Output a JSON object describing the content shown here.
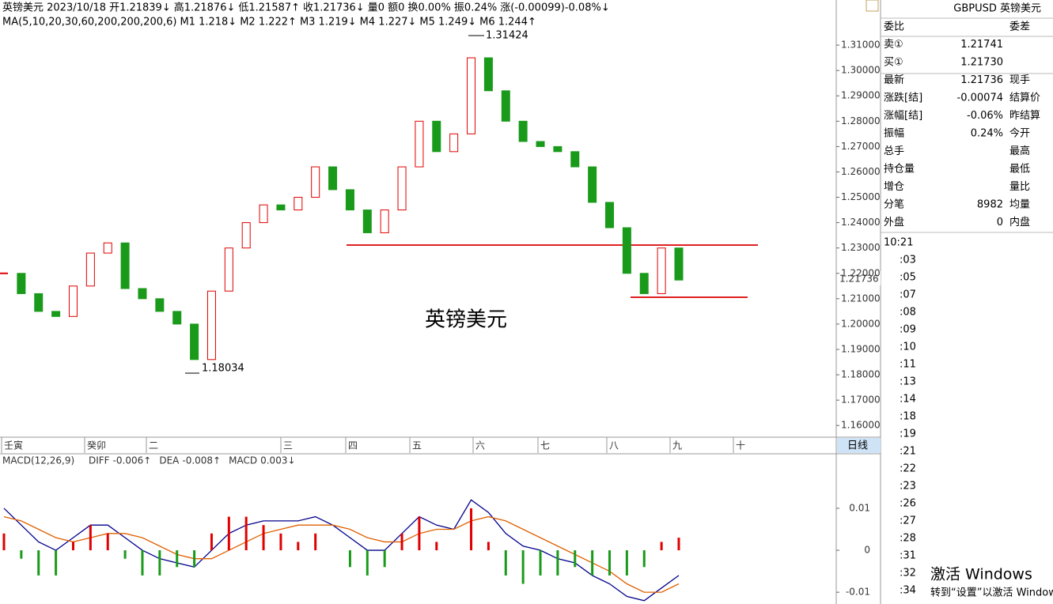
{
  "header": [
    {
      "text": "英镑美元 2023/10/18",
      "color": "#000000"
    },
    {
      "text": "开1.21839↓",
      "color": "#e00000"
    },
    {
      "text": "高1.21876↓",
      "color": "#e00000"
    },
    {
      "text": "低1.21587↑",
      "color": "#009900"
    },
    {
      "text": "收1.21736↓",
      "color": "#009900"
    },
    {
      "text": "量0 额0 换0.00% 振0.24%",
      "color": "#000000"
    },
    {
      "text": "涨(-0.00099)-0.08%↓",
      "color": "#009900"
    }
  ],
  "ma_header": [
    {
      "text": "MA(5,10,20,30,60,200,200,200,6)",
      "color": "#000000"
    },
    {
      "text": "M1 1.218↓",
      "color": "#00008b"
    },
    {
      "text": "M2 1.222↑",
      "color": "#e06000"
    },
    {
      "text": "M3 1.219↓",
      "color": "#888888"
    },
    {
      "text": "M4 1.227↓",
      "color": "#8b0000"
    },
    {
      "text": "M5 1.249↓",
      "color": "#008000"
    },
    {
      "text": "M6 1.244↑",
      "color": "#00c8e0"
    }
  ],
  "chart_data": [
    {
      "type": "candlestick",
      "up_color": "#e00000",
      "down_color": "#1a9a1a",
      "values": [
        1.22,
        1.212,
        1.205,
        1.203,
        1.215,
        1.228,
        1.232,
        1.214,
        1.21,
        1.205,
        1.2,
        1.186,
        1.213,
        1.23,
        1.24,
        1.247,
        1.245,
        1.25,
        1.262,
        1.253,
        1.245,
        1.236,
        1.245,
        1.262,
        1.28,
        1.268,
        1.275,
        1.305,
        1.292,
        1.28,
        1.272,
        1.27,
        1.268,
        1.262,
        1.248,
        1.238,
        1.22,
        1.212,
        1.23,
        1.21736
      ],
      "ylim": [
        1.1557,
        1.3278
      ],
      "yticks": [
        {
          "value": 1.31,
          "label": "1.31000"
        },
        {
          "value": 1.3,
          "label": "1.30000"
        },
        {
          "value": 1.29,
          "label": "1.29000"
        },
        {
          "value": 1.28,
          "label": "1.28000"
        },
        {
          "value": 1.27,
          "label": "1.27000"
        },
        {
          "value": 1.26,
          "label": "1.26000"
        },
        {
          "value": 1.25,
          "label": "1.25000"
        },
        {
          "value": 1.24,
          "label": "1.24000"
        },
        {
          "value": 1.23,
          "label": "1.23000"
        },
        {
          "value": 1.22,
          "label": "1.22000"
        },
        {
          "value": 1.21,
          "label": "1.21000"
        },
        {
          "value": 1.2,
          "label": "1.20000"
        },
        {
          "value": 1.19,
          "label": "1.19000"
        },
        {
          "value": 1.18,
          "label": "1.18000"
        },
        {
          "value": 1.17,
          "label": "1.17000"
        },
        {
          "value": 1.16,
          "label": "1.16000"
        }
      ],
      "annotations": [
        "1.31424",
        "1.18034",
        "英镑美元"
      ],
      "last_price": "1.21736",
      "x_axis_labels": [
        "壬寅",
        "癸卯",
        "二",
        "三",
        "四",
        "五",
        "六",
        "七",
        "八",
        "九",
        "十"
      ],
      "period": "日线"
    },
    {
      "type": "line",
      "title": "MACD(12,26,9)",
      "series": [
        {
          "name": "DIFF",
          "legend_value": "-0.006↑",
          "color": "#00008b",
          "values": [
            0.01,
            0.006,
            0.002,
            0.0,
            0.003,
            0.006,
            0.006,
            0.003,
            0.0,
            -0.002,
            -0.003,
            -0.004,
            0.0,
            0.004,
            0.006,
            0.007,
            0.007,
            0.007,
            0.008,
            0.006,
            0.003,
            0.0,
            0.0,
            0.004,
            0.008,
            0.006,
            0.005,
            0.012,
            0.009,
            0.004,
            0.001,
            0.0,
            -0.002,
            -0.003,
            -0.006,
            -0.008,
            -0.011,
            -0.012,
            -0.009,
            -0.006
          ]
        },
        {
          "name": "DEA",
          "legend_value": "-0.008↑",
          "color": "#e06000",
          "values": [
            0.008,
            0.007,
            0.005,
            0.003,
            0.002,
            0.003,
            0.004,
            0.004,
            0.003,
            0.001,
            -0.001,
            -0.002,
            -0.002,
            0.0,
            0.002,
            0.004,
            0.005,
            0.006,
            0.006,
            0.006,
            0.005,
            0.003,
            0.002,
            0.002,
            0.004,
            0.005,
            0.005,
            0.007,
            0.008,
            0.007,
            0.005,
            0.003,
            0.001,
            -0.001,
            -0.003,
            -0.005,
            -0.008,
            -0.01,
            -0.01,
            -0.008
          ]
        },
        {
          "name": "MACD",
          "legend_value": "0.003↓",
          "color": "#888888",
          "values": [
            0.004,
            -0.002,
            -0.006,
            -0.006,
            0.002,
            0.006,
            0.004,
            -0.002,
            -0.006,
            -0.006,
            -0.004,
            -0.004,
            0.004,
            0.008,
            0.008,
            0.006,
            0.004,
            0.002,
            0.004,
            0.0,
            -0.004,
            -0.006,
            -0.004,
            0.004,
            0.008,
            0.002,
            0.0,
            0.01,
            0.002,
            -0.006,
            -0.008,
            -0.006,
            -0.006,
            -0.004,
            -0.006,
            -0.006,
            -0.006,
            -0.004,
            0.002,
            0.003
          ]
        }
      ],
      "ylim": [
        -0.0128,
        0.0228
      ],
      "yticks": [
        0.01,
        0,
        -0.01
      ]
    }
  ],
  "quote_panel": {
    "title": "GBPUSD 英镑美元",
    "rows": [
      [
        "委比",
        "",
        "委差"
      ],
      [
        "卖①",
        "1.21741",
        ""
      ],
      [
        "买①",
        "1.21730",
        ""
      ],
      [
        "最新",
        "1.21736",
        "现手"
      ],
      [
        "涨跌[结]",
        "-0.00074",
        "结算价"
      ],
      [
        "涨幅[结]",
        "-0.06%",
        "昨结算"
      ],
      [
        "振幅",
        "0.24%",
        "今开"
      ],
      [
        "总手",
        "",
        "最高"
      ],
      [
        "持仓量",
        "",
        "最低"
      ],
      [
        "增仓",
        "",
        "量比"
      ],
      [
        "分笔",
        "8982",
        "均量"
      ],
      [
        "外盘",
        "0",
        "内盘"
      ]
    ],
    "times": [
      "10:21",
      ":03",
      ":05",
      ":07",
      ":08",
      ":09",
      ":10",
      ":11",
      ":13",
      ":14",
      ":18",
      ":19",
      ":21",
      ":22",
      ":23",
      ":26",
      ":27",
      ":28",
      ":31",
      ":32",
      ":34"
    ]
  },
  "watermark": [
    "激活 Windows",
    "转到“设置”以激活 Windows。"
  ]
}
